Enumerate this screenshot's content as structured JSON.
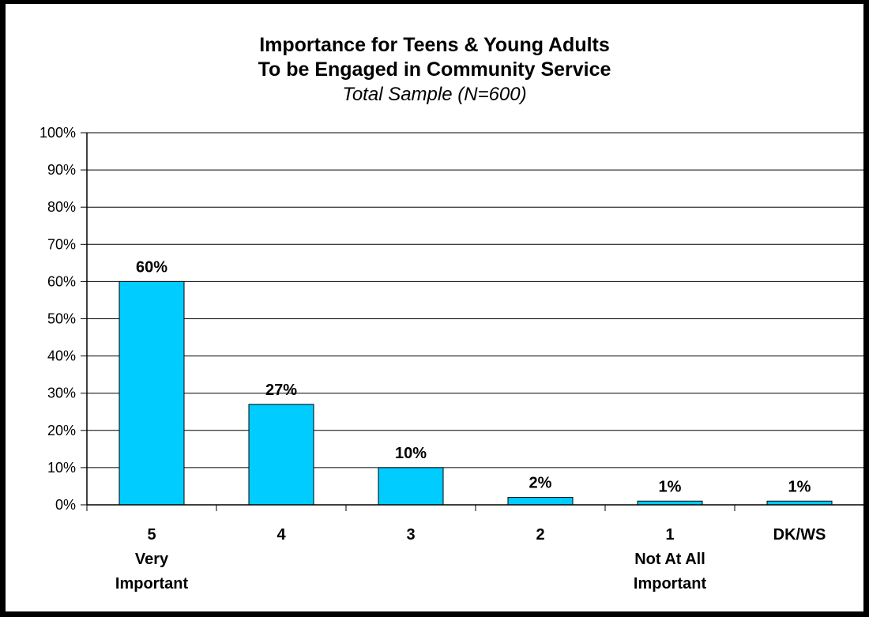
{
  "chart_data": {
    "type": "bar",
    "title_lines": [
      "Importance for Teens & Young Adults",
      "To be Engaged in Community Service"
    ],
    "subtitle": "Total Sample (N=600)",
    "categories": [
      [
        "5",
        "Very",
        "Important"
      ],
      [
        "4"
      ],
      [
        "3"
      ],
      [
        "2"
      ],
      [
        "1",
        "Not At All",
        "Important"
      ],
      [
        "DK/WS"
      ]
    ],
    "values": [
      60,
      27,
      10,
      2,
      1,
      1
    ],
    "data_labels": [
      "60%",
      "27%",
      "10%",
      "2%",
      "1%",
      "1%"
    ],
    "y_ticks": [
      "0%",
      "10%",
      "20%",
      "30%",
      "40%",
      "50%",
      "60%",
      "70%",
      "80%",
      "90%",
      "100%"
    ],
    "ylim": [
      0,
      100
    ],
    "grid": true,
    "bar_color": "#00CCFF"
  }
}
